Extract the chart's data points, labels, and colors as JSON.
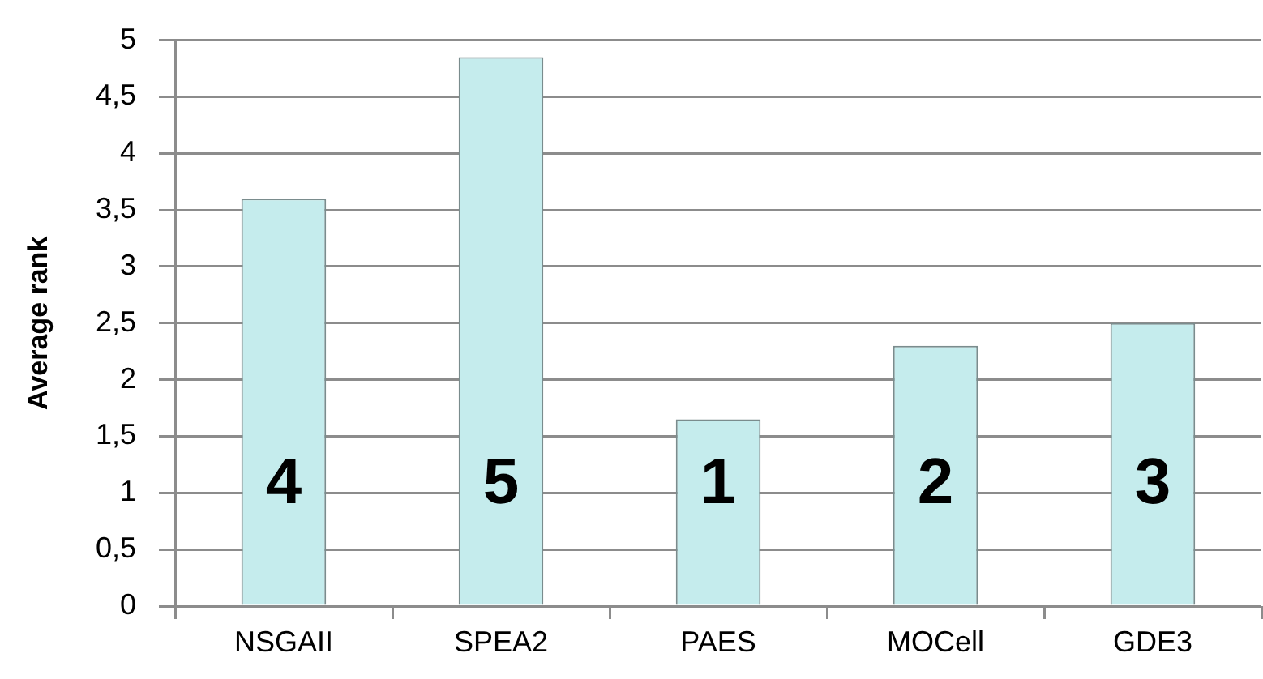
{
  "chart_data": {
    "type": "bar",
    "ylabel": "Average rank",
    "categories": [
      "NSGAII",
      "SPEA2",
      "PAES",
      "MOCell",
      "GDE3"
    ],
    "values": [
      3.6,
      4.85,
      1.65,
      2.3,
      2.5
    ],
    "color": "#c5eced",
    "annotations": [
      "4",
      "5",
      "1",
      "2",
      "3"
    ],
    "ylim": [
      0,
      5
    ],
    "yticks": [
      0,
      {
        "value": 0.5,
        "label": "0,5"
      },
      1,
      {
        "value": 1.5,
        "label": "1,5"
      },
      2,
      {
        "value": 2.5,
        "label": "2,5"
      },
      3,
      {
        "value": 3.5,
        "label": "3,5"
      },
      4,
      {
        "value": 4.5,
        "label": "4,5"
      },
      5
    ],
    "grid": "y"
  }
}
